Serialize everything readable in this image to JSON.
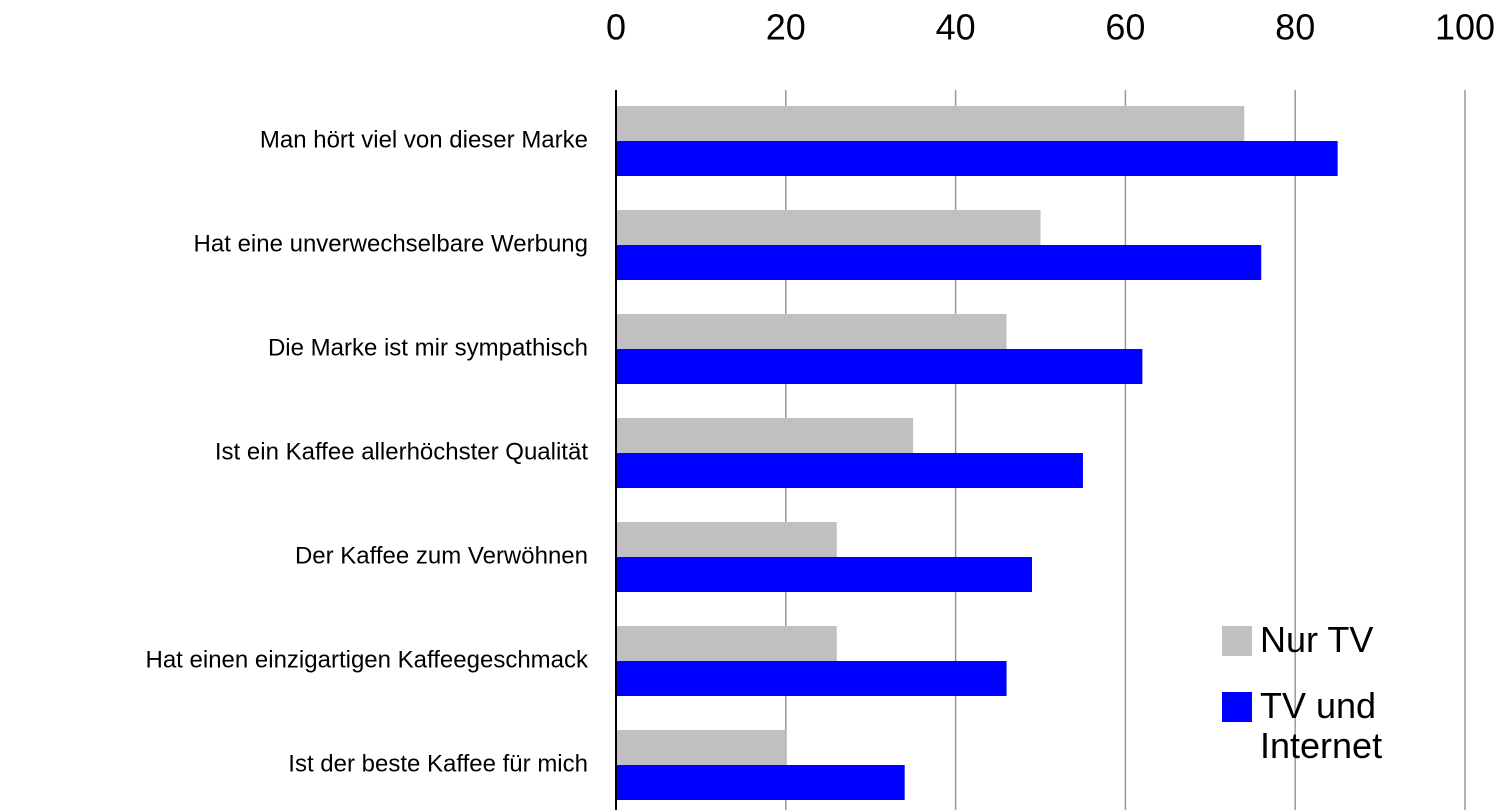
{
  "chart_data": {
    "type": "barh",
    "categories": [
      "Man hört viel von dieser Marke",
      "Hat eine unverwechselbare Werbung",
      "Die Marke ist mir sympathisch",
      "Ist ein Kaffee allerhöchster Qualität",
      "Der Kaffee zum Verwöhnen",
      "Hat einen einzigartigen Kaffeegeschmack",
      "Ist der beste Kaffee für mich"
    ],
    "series": [
      {
        "name": "Nur TV",
        "color": "#c0c0c0",
        "values": [
          74,
          50,
          46,
          35,
          26,
          26,
          20
        ]
      },
      {
        "name": "TV und Internet",
        "color": "#0000ff",
        "values": [
          85,
          76,
          62,
          55,
          49,
          46,
          34
        ]
      }
    ],
    "xlim": [
      0,
      100
    ],
    "xticks": [
      0,
      20,
      40,
      60,
      80,
      100
    ],
    "grid": true,
    "legend": "lower right"
  }
}
